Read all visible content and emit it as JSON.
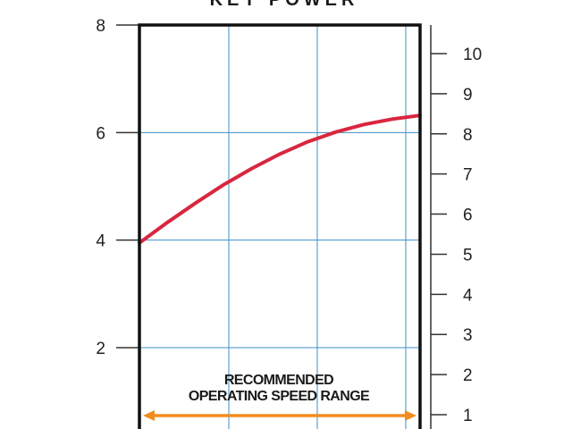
{
  "chart_data": {
    "type": "line",
    "title": "",
    "xlabel": "",
    "ylabel": "",
    "y_left": {
      "ticks": [
        "2",
        "4",
        "6",
        "8"
      ],
      "range": [
        0.4,
        8.0
      ]
    },
    "y_right": {
      "ticks": [
        "1",
        "2",
        "3",
        "4",
        "5",
        "6",
        "7",
        "8",
        "9",
        "10"
      ]
    },
    "grid": true,
    "x_range": [
      0,
      1
    ],
    "series": [
      {
        "color": "#d9263f",
        "x": [
          0,
          0.1,
          0.2,
          0.3,
          0.4,
          0.5,
          0.6,
          0.7,
          0.8,
          0.9,
          1.0
        ],
        "y": [
          3.95,
          4.33,
          4.69,
          5.03,
          5.33,
          5.6,
          5.83,
          6.01,
          6.15,
          6.25,
          6.32
        ]
      }
    ],
    "annotation": {
      "lines": [
        "RECOMMENDED",
        "OPERATING SPEED RANGE"
      ],
      "arrow_x": [
        0,
        1
      ],
      "arrow_color": "#f28c1e"
    },
    "top_title_partial": "KEY POWER"
  }
}
